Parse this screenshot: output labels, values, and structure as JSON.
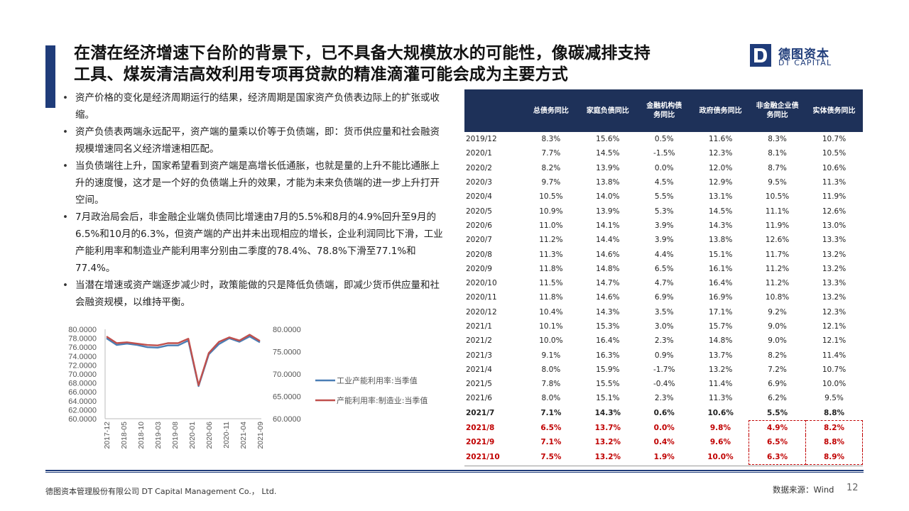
{
  "title": {
    "line1": "在潜在经济增速下台阶的背景下，已不具备大规模放水的可能性，像碳减排支持",
    "line2": "工具、煤炭清洁高效利用专项再贷款的精准滴灌可能会成为主要方式"
  },
  "logo": {
    "cn": "德图资本",
    "en": "DT CAPITAL"
  },
  "bullets": [
    "资产价格的变化是经济周期运行的结果，经济周期是国家资产负债表边际上的扩张或收缩。",
    "资产负债表两端永远配平，资产端的量乘以价等于负债端，即：货币供应量和社会融资规模增速同名义经济增速相匹配。",
    "当负债端往上升，国家希望看到资产端是高增长低通胀，也就是量的上升不能比通胀上升的速度慢，这才是一个好的负债端上升的效果，才能为未来负债端的进一步上升打开空间。",
    "7月政治局会后，非金融企业端负债同比增速由7月的5.5%和8月的4.9%回升至9月的6.5%和10月的6.3%，但资产端的产出并未出现相应的增长，企业利润同比下滑，工业产能利用率和制造业产能利用率分别由二季度的78.4%、78.8%下滑至77.1%和77.4%。",
    "当潜在增速或资产端逐步减少时，政策能做的只是降低负债端，即减少货币供应量和社会融资规模，以维持平衡。"
  ],
  "table": {
    "headers": [
      "",
      "总债务同比",
      "家庭负债同比",
      "金融机构债务同比",
      "政府债务同比",
      "非金融企业债务同比",
      "实体债务同比"
    ],
    "rows": [
      [
        "2019/12",
        "8.3%",
        "15.6%",
        "0.5%",
        "11.6%",
        "8.3%",
        "10.7%"
      ],
      [
        "2020/1",
        "7.7%",
        "14.5%",
        "-1.5%",
        "12.3%",
        "8.1%",
        "10.5%"
      ],
      [
        "2020/2",
        "8.2%",
        "13.9%",
        "0.0%",
        "12.0%",
        "8.7%",
        "10.6%"
      ],
      [
        "2020/3",
        "9.7%",
        "13.8%",
        "4.5%",
        "12.9%",
        "9.5%",
        "11.3%"
      ],
      [
        "2020/4",
        "10.5%",
        "14.0%",
        "5.5%",
        "13.1%",
        "10.5%",
        "11.9%"
      ],
      [
        "2020/5",
        "10.9%",
        "13.9%",
        "5.3%",
        "14.5%",
        "11.1%",
        "12.6%"
      ],
      [
        "2020/6",
        "11.0%",
        "14.1%",
        "3.9%",
        "14.3%",
        "11.9%",
        "13.0%"
      ],
      [
        "2020/7",
        "11.2%",
        "14.4%",
        "3.9%",
        "13.8%",
        "12.6%",
        "13.3%"
      ],
      [
        "2020/8",
        "11.3%",
        "14.6%",
        "4.4%",
        "15.1%",
        "11.7%",
        "13.2%"
      ],
      [
        "2020/9",
        "11.8%",
        "14.8%",
        "6.5%",
        "16.1%",
        "11.2%",
        "13.2%"
      ],
      [
        "2020/10",
        "11.5%",
        "14.7%",
        "4.7%",
        "16.4%",
        "11.2%",
        "13.3%"
      ],
      [
        "2020/11",
        "11.8%",
        "14.6%",
        "6.9%",
        "16.9%",
        "10.8%",
        "13.2%"
      ],
      [
        "2020/12",
        "10.4%",
        "14.3%",
        "3.5%",
        "17.1%",
        "9.2%",
        "12.3%"
      ],
      [
        "2021/1",
        "10.1%",
        "15.3%",
        "3.0%",
        "15.7%",
        "9.0%",
        "12.1%"
      ],
      [
        "2021/2",
        "10.0%",
        "16.4%",
        "2.3%",
        "14.8%",
        "9.0%",
        "12.1%"
      ],
      [
        "2021/3",
        "9.1%",
        "16.3%",
        "0.9%",
        "13.7%",
        "8.2%",
        "11.4%"
      ],
      [
        "2021/4",
        "8.0%",
        "15.9%",
        "-1.7%",
        "13.2%",
        "7.2%",
        "10.7%"
      ],
      [
        "2021/5",
        "7.8%",
        "15.5%",
        "-0.4%",
        "11.4%",
        "6.9%",
        "10.0%"
      ],
      [
        "2021/6",
        "8.0%",
        "15.1%",
        "2.3%",
        "11.3%",
        "6.2%",
        "9.5%"
      ],
      [
        "2021/7",
        "7.1%",
        "14.3%",
        "0.6%",
        "10.6%",
        "5.5%",
        "8.8%"
      ],
      [
        "2021/8",
        "6.5%",
        "13.7%",
        "0.0%",
        "9.8%",
        "4.9%",
        "8.2%"
      ],
      [
        "2021/9",
        "7.1%",
        "13.2%",
        "0.4%",
        "9.6%",
        "6.5%",
        "8.8%"
      ],
      [
        "2021/10",
        "7.5%",
        "13.2%",
        "1.9%",
        "10.0%",
        "6.3%",
        "8.9%"
      ]
    ]
  },
  "chart_data": {
    "type": "line",
    "x_tick_labels": [
      "2017-12",
      "2018-05",
      "2018-10",
      "2019-03",
      "2019-08",
      "2020-01",
      "2020-06",
      "2020-11",
      "2021-04",
      "2021-09"
    ],
    "x": [
      "2017-12",
      "2018-03",
      "2018-06",
      "2018-09",
      "2018-12",
      "2019-03",
      "2019-06",
      "2019-09",
      "2019-12",
      "2020-03",
      "2020-06",
      "2020-09",
      "2020-12",
      "2021-03",
      "2021-06",
      "2021-09"
    ],
    "left_axis": {
      "ylim": [
        60,
        80
      ],
      "ticks": [
        "80.0000",
        "78.0000",
        "76.0000",
        "74.0000",
        "72.0000",
        "70.0000",
        "68.0000",
        "66.0000",
        "64.0000",
        "62.0000",
        "60.0000"
      ]
    },
    "right_axis": {
      "ylim": [
        60,
        80
      ],
      "ticks": [
        "80.0000",
        "75.0000",
        "70.0000",
        "65.0000",
        "60.0000"
      ]
    },
    "series": [
      {
        "name": "工业产能利用率:当季值",
        "color": "#4a7eb5",
        "values": [
          78.0,
          76.5,
          76.8,
          76.5,
          76.0,
          75.9,
          76.4,
          76.4,
          77.5,
          67.3,
          74.4,
          76.7,
          78.0,
          77.2,
          78.4,
          77.1
        ]
      },
      {
        "name": "产能利用率:制造业:当季值",
        "color": "#c0504d",
        "values": [
          78.4,
          76.9,
          77.1,
          76.8,
          76.5,
          76.4,
          76.9,
          76.9,
          77.9,
          67.5,
          74.7,
          77.2,
          78.2,
          77.5,
          78.8,
          77.4
        ]
      }
    ]
  },
  "footer": {
    "company": "德图资本管理股份有限公司 DT Capital Management Co.， Ltd.",
    "source": "数据来源：Wind",
    "page": "12"
  }
}
